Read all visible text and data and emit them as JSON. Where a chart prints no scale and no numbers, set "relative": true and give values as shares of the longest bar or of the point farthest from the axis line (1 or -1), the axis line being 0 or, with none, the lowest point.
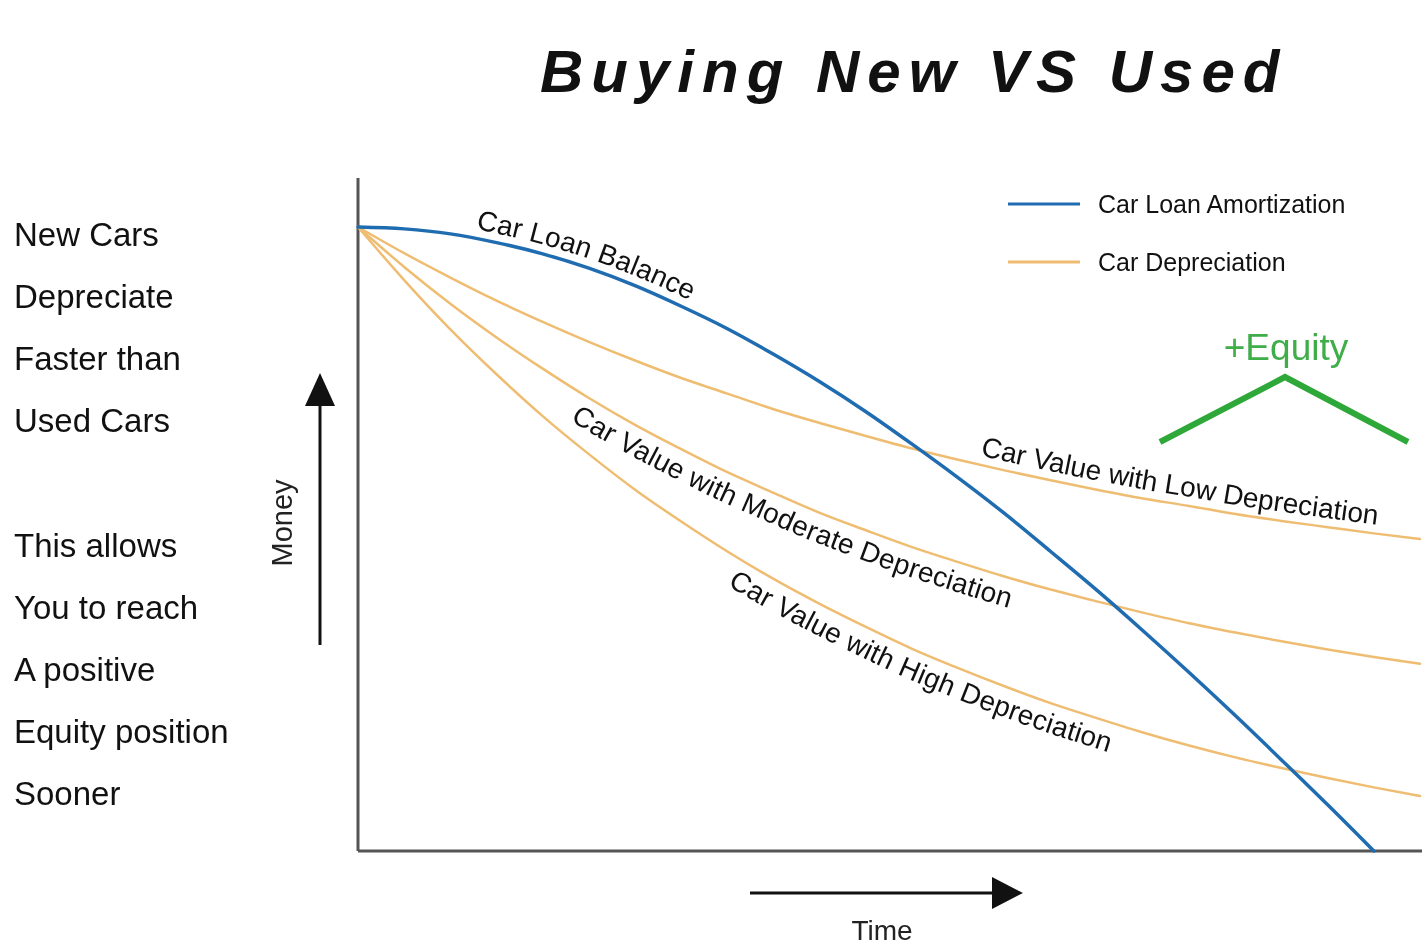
{
  "chart_data": {
    "type": "line",
    "title": "Buying New VS Used",
    "xlabel": "Time",
    "ylabel": "Money",
    "relative": true,
    "legend": "top right",
    "categories": [
      null,
      null,
      null,
      null,
      null,
      null,
      null,
      null,
      null,
      null,
      null,
      null,
      null,
      null,
      null,
      null,
      null,
      null,
      null,
      null,
      null,
      null,
      null,
      null
    ],
    "series": [
      {
        "name": "Car Loan Amortization",
        "color": "#1f6cb0",
        "values": [
          1,
          0.997,
          0.989,
          0.975,
          0.957,
          0.934,
          0.906,
          0.873,
          0.837,
          0.796,
          0.752,
          0.704,
          0.652,
          0.598,
          0.541,
          0.48,
          0.418,
          0.353,
          0.286,
          0.217,
          0.146,
          0.074,
          0,
          null
        ]
      },
      {
        "name": "Car Depreciation",
        "color": "#efbd72",
        "values": [
          1,
          0.958,
          0.919,
          0.882,
          0.848,
          0.816,
          0.786,
          0.758,
          0.733,
          0.708,
          0.686,
          0.665,
          0.645,
          0.627,
          0.61,
          0.594,
          0.579,
          0.565,
          0.553,
          0.54,
          0.529,
          0.519,
          0.509,
          0.5
        ]
      },
      {
        "color": "#efbd72",
        "values": [
          1,
          0.936,
          0.877,
          0.823,
          0.773,
          0.726,
          0.683,
          0.644,
          0.607,
          0.574,
          0.542,
          0.514,
          0.487,
          0.463,
          0.44,
          0.419,
          0.4,
          0.382,
          0.365,
          0.35,
          0.336,
          0.323,
          0.311,
          0.3
        ]
      },
      {
        "color": "#efbd72",
        "values": [
          1,
          0.915,
          0.836,
          0.764,
          0.697,
          0.636,
          0.579,
          0.528,
          0.48,
          0.436,
          0.396,
          0.359,
          0.324,
          0.293,
          0.264,
          0.237,
          0.213,
          0.19,
          0.169,
          0.15,
          0.133,
          0.117,
          0.102,
          0.088
        ]
      }
    ],
    "annotations": [
      "Car Loan Balance",
      "Car Value with Low Depreciation",
      "Car Value with Moderate Depreciation",
      "Car Value with High Depreciation",
      "+Equity",
      "New Cars\nDepreciate\nFaster than\nUsed Cars",
      "This allows\nYou to reach\nA positive\nEquity position\nSooner"
    ]
  }
}
